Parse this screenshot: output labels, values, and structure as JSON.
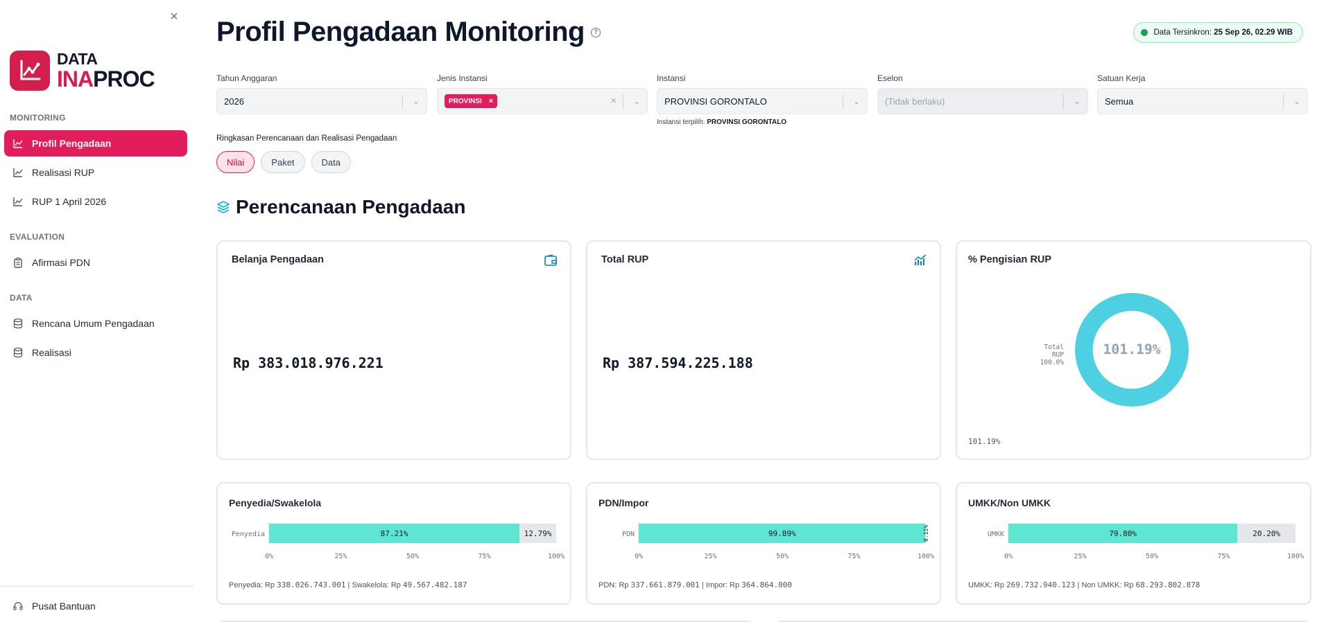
{
  "sidebar": {
    "close_label": "×",
    "logo": {
      "line1": "DATA",
      "line2a": "INA",
      "line2b": "PROC"
    },
    "sections": [
      {
        "label": "MONITORING"
      },
      {
        "label": "EVALUATION"
      },
      {
        "label": "DATA"
      }
    ],
    "items": [
      {
        "label": "Profil Pengadaan",
        "icon": "chart-line-icon",
        "active": true
      },
      {
        "label": "Realisasi RUP",
        "icon": "chart-line-icon"
      },
      {
        "label": "RUP 1 April 2026",
        "icon": "chart-line-icon"
      },
      {
        "label": "Afirmasi PDN",
        "icon": "clipboard-icon"
      },
      {
        "label": "Rencana Umum Pengadaan",
        "icon": "database-icon"
      },
      {
        "label": "Realisasi",
        "icon": "database-icon"
      }
    ],
    "help": {
      "label": "Pusat Bantuan",
      "icon": "headset-icon"
    }
  },
  "header": {
    "title": "Profil Pengadaan Monitoring",
    "help_glyph": "?",
    "sync_label": "Data Tersinkron:",
    "sync_time": "25 Sep 26, 02.29 WIB"
  },
  "filters": {
    "tahun": {
      "label": "Tahun Anggaran",
      "value": "2026"
    },
    "jenis": {
      "label": "Jenis Instansi",
      "tag": "PROVINSI",
      "tag_x": "×"
    },
    "instansi": {
      "label": "Instansi",
      "value": "PROVINSI GORONTALO",
      "helper_prefix": "Instansi terpilih:",
      "helper_value": "PROVINSI GORONTALO"
    },
    "eselon": {
      "label": "Eselon",
      "value": "(Tidak berlaku)"
    },
    "satker": {
      "label": "Satuan Kerja",
      "value": "Semua"
    }
  },
  "summary": {
    "label": "Ringkasan Perencanaan dan Realisasi Pengadaan",
    "pills": [
      "Nilai",
      "Paket",
      "Data"
    ],
    "active_pill": "Nilai"
  },
  "section": {
    "title": "Perencanaan Pengadaan"
  },
  "cards": {
    "belanja": {
      "title": "Belanja Pengadaan",
      "value": "Rp 383.018.976.221"
    },
    "total_rup": {
      "title": "Total RUP",
      "value": "Rp 387.594.225.188"
    },
    "pengisian": {
      "title": "% Pengisian RUP",
      "center": "101.19%",
      "legend_name": "Total RUP",
      "legend_value": "100.0%",
      "foot": "101.19%"
    }
  },
  "chart_data": [
    {
      "type": "bar",
      "title": "Penyedia/Swakelola",
      "categories": [
        "Penyedia"
      ],
      "series": [
        {
          "name": "Penyedia",
          "values": [
            87.21
          ]
        },
        {
          "name": "Swakelola",
          "values": [
            12.79
          ]
        }
      ],
      "labels": [
        "87.21%",
        "12.79%"
      ],
      "x_ticks": [
        "0%",
        "25%",
        "50%",
        "75%",
        "100%"
      ],
      "xlim": [
        0,
        100
      ],
      "foot_a_label": "Penyedia: Rp",
      "foot_a_value": "338.026.743.001",
      "foot_sep": "|",
      "foot_b_label": "Swakelola: Rp",
      "foot_b_value": "49.567.482.187"
    },
    {
      "type": "bar",
      "title": "PDN/Impor",
      "categories": [
        "PDN"
      ],
      "series": [
        {
          "name": "PDN",
          "values": [
            99.89
          ]
        },
        {
          "name": "Impor",
          "values": [
            0.11
          ]
        }
      ],
      "labels": [
        "99.89%",
        "0.11%"
      ],
      "x_ticks": [
        "0%",
        "25%",
        "50%",
        "75%",
        "100%"
      ],
      "xlim": [
        0,
        100
      ],
      "foot_a_label": "PDN: Rp",
      "foot_a_value": "337.661.879.001",
      "foot_sep": "|",
      "foot_b_label": "Impor: Rp",
      "foot_b_value": "364.864.000"
    },
    {
      "type": "bar",
      "title": "UMKK/Non UMKK",
      "categories": [
        "UMKK"
      ],
      "series": [
        {
          "name": "UMKK",
          "values": [
            79.8
          ]
        },
        {
          "name": "Non UMKK",
          "values": [
            20.2
          ]
        }
      ],
      "labels": [
        "79.80%",
        "20.20%"
      ],
      "x_ticks": [
        "0%",
        "25%",
        "50%",
        "75%",
        "100%"
      ],
      "xlim": [
        0,
        100
      ],
      "foot_a_label": "UMKK: Rp",
      "foot_a_value": "269.732.940.123",
      "foot_sep": "|",
      "foot_b_label": "Non UMKK: Rp",
      "foot_b_value": "68.293.802.878"
    }
  ],
  "colors": {
    "accent": "#e11d5b",
    "primary_bar": "#5ee6d3",
    "secondary_bar": "#e5e7eb",
    "donut": "#4dd0e1"
  }
}
